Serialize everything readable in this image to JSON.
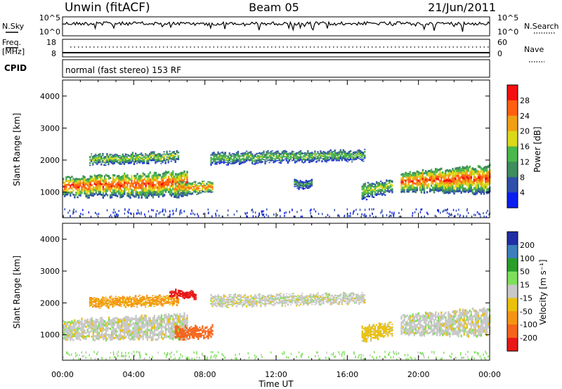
{
  "header": {
    "radar": "Unwin (fitACF)",
    "beam": "Beam 05",
    "date": "21/Jun/2011"
  },
  "nsky": {
    "left_label": "N.Sky",
    "right_label": "N.Search",
    "ticks_left": [
      "10^5",
      "10^0"
    ],
    "ticks_right": [
      "10^5",
      "10^0"
    ]
  },
  "freq": {
    "left_label_1": "Freq.",
    "left_label_2": "[MHz]",
    "right_label": "Nave",
    "ticks_left": [
      "18",
      "8"
    ],
    "ticks_right": [
      "60",
      "0"
    ]
  },
  "cpid": {
    "label": "CPID",
    "text": "normal (fast stereo) 153 RF"
  },
  "x_axis": {
    "label": "Time UT",
    "ticks": [
      "00:00",
      "04:00",
      "08:00",
      "12:00",
      "16:00",
      "20:00",
      "00:00"
    ]
  },
  "colors": {
    "power": [
      "#0a1ef0",
      "#2f4faa",
      "#3f8c5c",
      "#4ab84a",
      "#dcd81a",
      "#f0a014",
      "#ff6010",
      "#f41010"
    ],
    "velocity": [
      "#1f2fa6",
      "#3c7fbc",
      "#2a9e2a",
      "#7ee05a",
      "#c8c8c8",
      "#e9c00c",
      "#f59414",
      "#f4641a",
      "#e81818"
    ]
  },
  "chart_data": [
    {
      "type": "heatmap",
      "title": "Power",
      "ylabel": "Slant Range [km]",
      "xlabel": "",
      "ylim": [
        200,
        4500
      ],
      "xlim": [
        "00:00",
        "24:00"
      ],
      "yticks": [
        "1000",
        "2000",
        "3000",
        "4000"
      ],
      "colorbar": {
        "label": "Power [dB]",
        "ticks": [
          "4",
          "8",
          "12",
          "16",
          "20",
          "24",
          "28"
        ],
        "range": [
          0,
          32
        ]
      },
      "bands": [
        {
          "start_h": 0.0,
          "end_h": 7.0,
          "center_km": [
            1150,
            1250
          ],
          "width_km": [
            600,
            800
          ],
          "peak_db": 28
        },
        {
          "start_h": 1.5,
          "end_h": 6.5,
          "center_km": [
            2000,
            2100
          ],
          "width_km": [
            300,
            300
          ],
          "peak_db": 18
        },
        {
          "start_h": 6.3,
          "end_h": 8.4,
          "center_km": [
            1100,
            1150
          ],
          "width_km": [
            400,
            350
          ],
          "peak_db": 26
        },
        {
          "start_h": 8.3,
          "end_h": 17.0,
          "center_km": [
            2050,
            2150
          ],
          "width_km": [
            350,
            300
          ],
          "peak_db": 16
        },
        {
          "start_h": 13.0,
          "end_h": 14.0,
          "center_km": [
            1250,
            1250
          ],
          "width_km": [
            250,
            250
          ],
          "peak_db": 12
        },
        {
          "start_h": 16.8,
          "end_h": 18.5,
          "center_km": [
            1000,
            1200
          ],
          "width_km": [
            500,
            400
          ],
          "peak_db": 18
        },
        {
          "start_h": 19.0,
          "end_h": 24.0,
          "center_km": [
            1300,
            1400
          ],
          "width_km": [
            600,
            900
          ],
          "peak_db": 28
        }
      ]
    },
    {
      "type": "heatmap",
      "title": "Velocity",
      "ylabel": "Slant Range [km]",
      "xlabel": "Time UT",
      "ylim": [
        200,
        4500
      ],
      "xlim": [
        "00:00",
        "24:00"
      ],
      "yticks": [
        "1000",
        "2000",
        "3000",
        "4000"
      ],
      "colorbar": {
        "label": "Velocity [m s⁻¹]",
        "ticks": [
          "200",
          "100",
          "50",
          "15",
          "-15",
          "-50",
          "-100",
          "-200"
        ],
        "range": [
          -250,
          250
        ]
      },
      "bands": [
        {
          "start_h": 0.0,
          "end_h": 7.0,
          "center_km": [
            1150,
            1250
          ],
          "width_km": [
            600,
            800
          ],
          "value_ms": 0
        },
        {
          "start_h": 1.5,
          "end_h": 6.5,
          "center_km": [
            2000,
            2100
          ],
          "width_km": [
            300,
            300
          ],
          "value_ms": -60
        },
        {
          "start_h": 6.3,
          "end_h": 8.4,
          "center_km": [
            1050,
            1100
          ],
          "width_km": [
            400,
            350
          ],
          "value_ms": -180
        },
        {
          "start_h": 6.0,
          "end_h": 7.5,
          "center_km": [
            2300,
            2250
          ],
          "width_km": [
            200,
            200
          ],
          "value_ms": -220
        },
        {
          "start_h": 8.3,
          "end_h": 17.0,
          "center_km": [
            2050,
            2150
          ],
          "width_km": [
            350,
            300
          ],
          "value_ms": 0
        },
        {
          "start_h": 16.8,
          "end_h": 18.5,
          "center_km": [
            1000,
            1200
          ],
          "width_km": [
            500,
            400
          ],
          "value_ms": -30
        },
        {
          "start_h": 19.0,
          "end_h": 24.0,
          "center_km": [
            1300,
            1400
          ],
          "width_km": [
            600,
            900
          ],
          "value_ms": 0
        }
      ]
    }
  ]
}
